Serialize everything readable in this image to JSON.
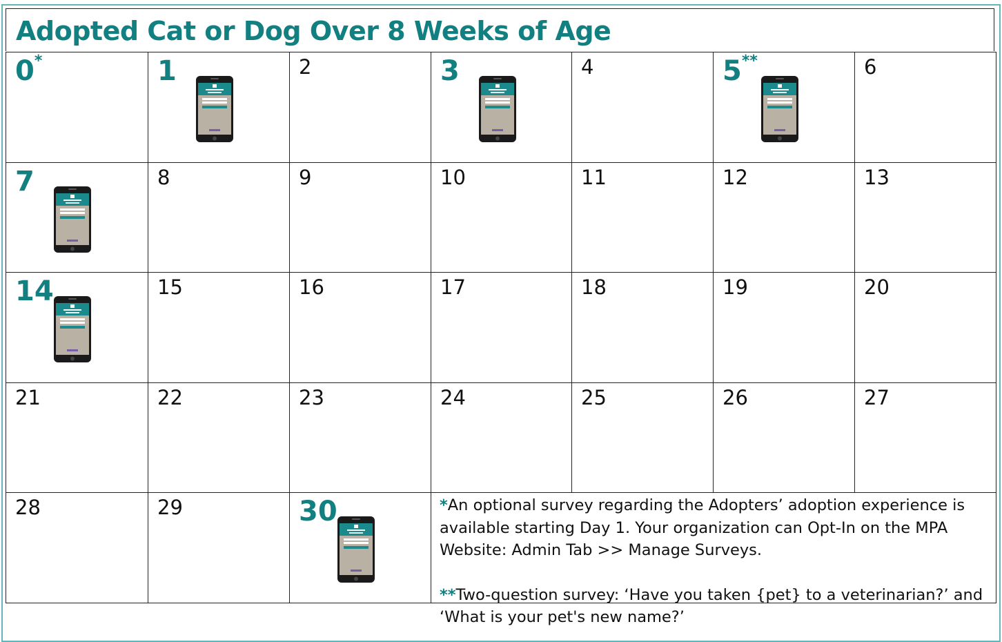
{
  "title": "Adopted Cat or Dog Over 8 Weeks of Age",
  "days": [
    {
      "day": 0,
      "marker": "*",
      "highlight": true,
      "phone": false
    },
    {
      "day": 1,
      "highlight": true,
      "phone": true
    },
    {
      "day": 2
    },
    {
      "day": 3,
      "highlight": true,
      "phone": true
    },
    {
      "day": 4
    },
    {
      "day": 5,
      "marker": "**",
      "highlight": true,
      "phone": true
    },
    {
      "day": 6
    },
    {
      "day": 7,
      "highlight": true,
      "phone": true
    },
    {
      "day": 8
    },
    {
      "day": 9
    },
    {
      "day": 10
    },
    {
      "day": 11
    },
    {
      "day": 12
    },
    {
      "day": 13
    },
    {
      "day": 14,
      "highlight": true,
      "phone": true
    },
    {
      "day": 15
    },
    {
      "day": 16
    },
    {
      "day": 17
    },
    {
      "day": 18
    },
    {
      "day": 19
    },
    {
      "day": 20
    },
    {
      "day": 21
    },
    {
      "day": 22
    },
    {
      "day": 23
    },
    {
      "day": 24
    },
    {
      "day": 25
    },
    {
      "day": 26
    },
    {
      "day": 27
    },
    {
      "day": 28
    },
    {
      "day": 29
    },
    {
      "day": 30,
      "highlight": true,
      "phone": true
    }
  ],
  "notes": [
    {
      "marker": "*",
      "text": "An optional survey regarding the Adopters’ adoption experience is available starting Day 1. Your organization can Opt-In on the MPA Website: Admin Tab >> Manage Surveys."
    },
    {
      "marker": "**",
      "text": "Two-question survey: ‘Have you taken {pet} to a veterinarian?’ and ‘What is your pet's new name?’"
    }
  ]
}
